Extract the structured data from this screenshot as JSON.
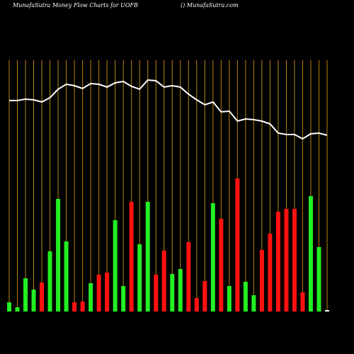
{
  "chart_data": {
    "type": "money-flow",
    "title": "MunafaSutra  Money Flow  Charts for UOFB",
    "subtitle": "() MunafaSutra.com",
    "background": "#000000",
    "gridline_color": "#b8860b",
    "line_color": "#ffffff",
    "ylim": [
      0,
      360
    ],
    "values": [
      13,
      6,
      47,
      31,
      41,
      85,
      159,
      99,
      13,
      14,
      40,
      52,
      55,
      129,
      36,
      155,
      95,
      155,
      52,
      86,
      53,
      60,
      98,
      19,
      43,
      153,
      131,
      36,
      188,
      42,
      23,
      87,
      110,
      141,
      145,
      145,
      27,
      163,
      91,
      2
    ],
    "colors": [
      "#22ee22",
      "#22ee22",
      "#22ee22",
      "#22ee22",
      "#ff1111",
      "#22ee22",
      "#22ee22",
      "#22ee22",
      "#ff1111",
      "#ff1111",
      "#22ee22",
      "#ff1111",
      "#ff1111",
      "#22ee22",
      "#22ee22",
      "#ff1111",
      "#22ee22",
      "#22ee22",
      "#ff1111",
      "#ff1111",
      "#22ee22",
      "#22ee22",
      "#ff1111",
      "#ff1111",
      "#ff1111",
      "#22ee22",
      "#ff1111",
      "#22ee22",
      "#ff1111",
      "#22ee22",
      "#22ee22",
      "#ff1111",
      "#ff1111",
      "#ff1111",
      "#ff1111",
      "#ff1111",
      "#ff1111",
      "#22ee22",
      "#22ee22",
      "#ffffff"
    ],
    "line_values": [
      298,
      298,
      300,
      299,
      296,
      302,
      314,
      321,
      319,
      315,
      322,
      321,
      317,
      323,
      325,
      318,
      314,
      327,
      326,
      317,
      319,
      317,
      307,
      299,
      292,
      296,
      282,
      283,
      269,
      272,
      271,
      269,
      265,
      252,
      250,
      250,
      244,
      251,
      252,
      249
    ]
  }
}
